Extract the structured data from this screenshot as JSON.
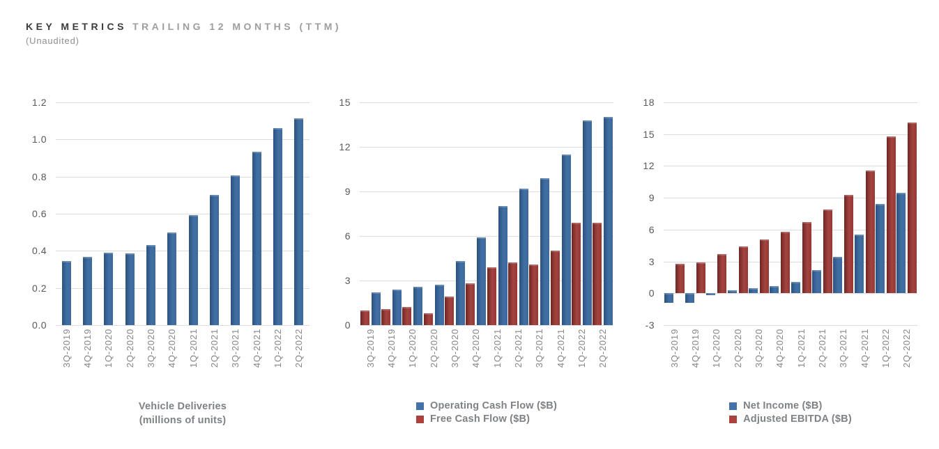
{
  "header": {
    "title_primary": "KEY METRICS",
    "title_secondary": "TRAILING 12 MONTHS (TTM)",
    "subtitle": "(Unaudited)"
  },
  "palette": {
    "blue_bar_gradient": [
      "#2a527f",
      "#416fa4",
      "#3e6a9b"
    ],
    "red_bar_gradient": [
      "#702623",
      "#a34440",
      "#953834"
    ],
    "blue_legend": "#4472a8",
    "red_legend": "#ac403c",
    "grid": "#dcdcdc",
    "y_tick_text": "#55585c",
    "x_label_text": "#85878a",
    "caption_text": "#7e8286",
    "title_dark": "#3b3b3b",
    "title_gray": "#9d9d9d"
  },
  "chart_data": [
    {
      "type": "bar",
      "title": "Vehicle Deliveries",
      "subtitle": "(millions of units)",
      "ylim": [
        0,
        1.2
      ],
      "yticks": [
        0,
        0.2,
        0.4,
        0.6,
        0.8,
        1.0,
        1.2
      ],
      "ytick_labels": [
        "0.0",
        "0.2",
        "0.4",
        "0.6",
        "0.8",
        "1.0",
        "1.2"
      ],
      "grid": true,
      "legend_position": "none",
      "categories": [
        "3Q-2019",
        "4Q-2019",
        "1Q-2020",
        "2Q-2020",
        "3Q-2020",
        "4Q-2020",
        "1Q-2021",
        "2Q-2021",
        "3Q-2021",
        "4Q-2021",
        "1Q-2022",
        "2Q-2022"
      ],
      "series": [
        {
          "name": "Vehicle Deliveries (millions of units)",
          "color": "blue",
          "values": [
            0.345,
            0.367,
            0.39,
            0.387,
            0.432,
            0.499,
            0.594,
            0.7,
            0.807,
            0.935,
            1.062,
            1.112
          ]
        }
      ],
      "legend": []
    },
    {
      "type": "bar",
      "title": "",
      "subtitle": "",
      "ylim": [
        0,
        15
      ],
      "yticks": [
        0,
        3,
        6,
        9,
        12,
        15
      ],
      "ytick_labels": [
        "0",
        "3",
        "6",
        "9",
        "12",
        "15"
      ],
      "grid": true,
      "legend_position": "bottom",
      "categories": [
        "3Q-2019",
        "4Q-2019",
        "1Q-2020",
        "2Q-2020",
        "3Q-2020",
        "4Q-2020",
        "1Q-2021",
        "2Q-2021",
        "3Q-2021",
        "4Q-2021",
        "1Q-2022",
        "2Q-2022"
      ],
      "series": [
        {
          "name": "Free Cash Flow ($B)",
          "color": "red",
          "values": [
            1.0,
            1.1,
            1.2,
            0.8,
            1.9,
            2.8,
            3.9,
            4.2,
            4.1,
            5.0,
            6.9,
            6.9
          ]
        },
        {
          "name": "Operating Cash Flow ($B)",
          "color": "blue",
          "values": [
            2.2,
            2.4,
            2.6,
            2.7,
            4.3,
            5.9,
            8.0,
            9.2,
            9.9,
            11.5,
            13.8,
            14.0
          ]
        }
      ],
      "legend": [
        {
          "label": "Operating Cash Flow ($B)",
          "color": "blue"
        },
        {
          "label": "Free Cash Flow ($B)",
          "color": "red"
        }
      ]
    },
    {
      "type": "bar",
      "title": "",
      "subtitle": "",
      "ylim": [
        -3,
        18
      ],
      "yticks": [
        -3,
        0,
        3,
        6,
        9,
        12,
        15,
        18
      ],
      "ytick_labels": [
        "-3",
        "0",
        "3",
        "6",
        "9",
        "12",
        "15",
        "18"
      ],
      "grid": true,
      "legend_position": "bottom",
      "categories": [
        "3Q-2019",
        "4Q-2019",
        "1Q-2020",
        "2Q-2020",
        "3Q-2020",
        "4Q-2020",
        "1Q-2021",
        "2Q-2021",
        "3Q-2021",
        "4Q-2021",
        "1Q-2022",
        "2Q-2022"
      ],
      "series": [
        {
          "name": "Net Income ($B)",
          "color": "blue",
          "values": [
            -0.9,
            -0.9,
            -0.2,
            0.3,
            0.5,
            0.7,
            1.1,
            2.2,
            3.4,
            5.5,
            8.4,
            9.5
          ]
        },
        {
          "name": "Adjusted EBITDA ($B)",
          "color": "red",
          "values": [
            2.8,
            2.9,
            3.7,
            4.4,
            5.1,
            5.8,
            6.7,
            7.9,
            9.3,
            11.6,
            14.8,
            16.1
          ]
        }
      ],
      "legend": [
        {
          "label": "Net Income ($B)",
          "color": "blue"
        },
        {
          "label": "Adjusted EBITDA ($B)",
          "color": "red"
        }
      ]
    }
  ]
}
